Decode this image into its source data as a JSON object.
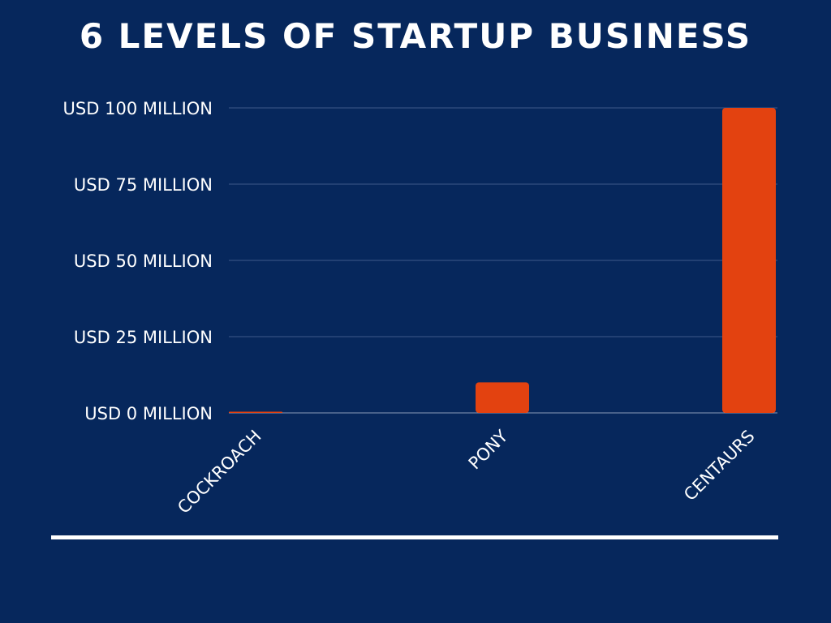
{
  "chart_data": {
    "type": "bar",
    "title": "6 LEVELS OF STARTUP BUSINESS",
    "categories": [
      "COCKROACH",
      "PONY",
      "CENTAURS"
    ],
    "values": [
      0.25,
      10,
      100
    ],
    "yticks": [
      0,
      25,
      50,
      75,
      100
    ],
    "ytick_labels": [
      "USD 0 MILLION",
      "USD 25 MILLION",
      "USD 50 MILLION",
      "USD 75 MILLION",
      "USD 100 MILLION"
    ],
    "ylim": [
      0,
      100
    ],
    "xlabel": "",
    "ylabel": "",
    "grid": true,
    "colors": {
      "bar": "#e34210",
      "background": "#06275c",
      "grid": "#3d5a8a"
    }
  }
}
